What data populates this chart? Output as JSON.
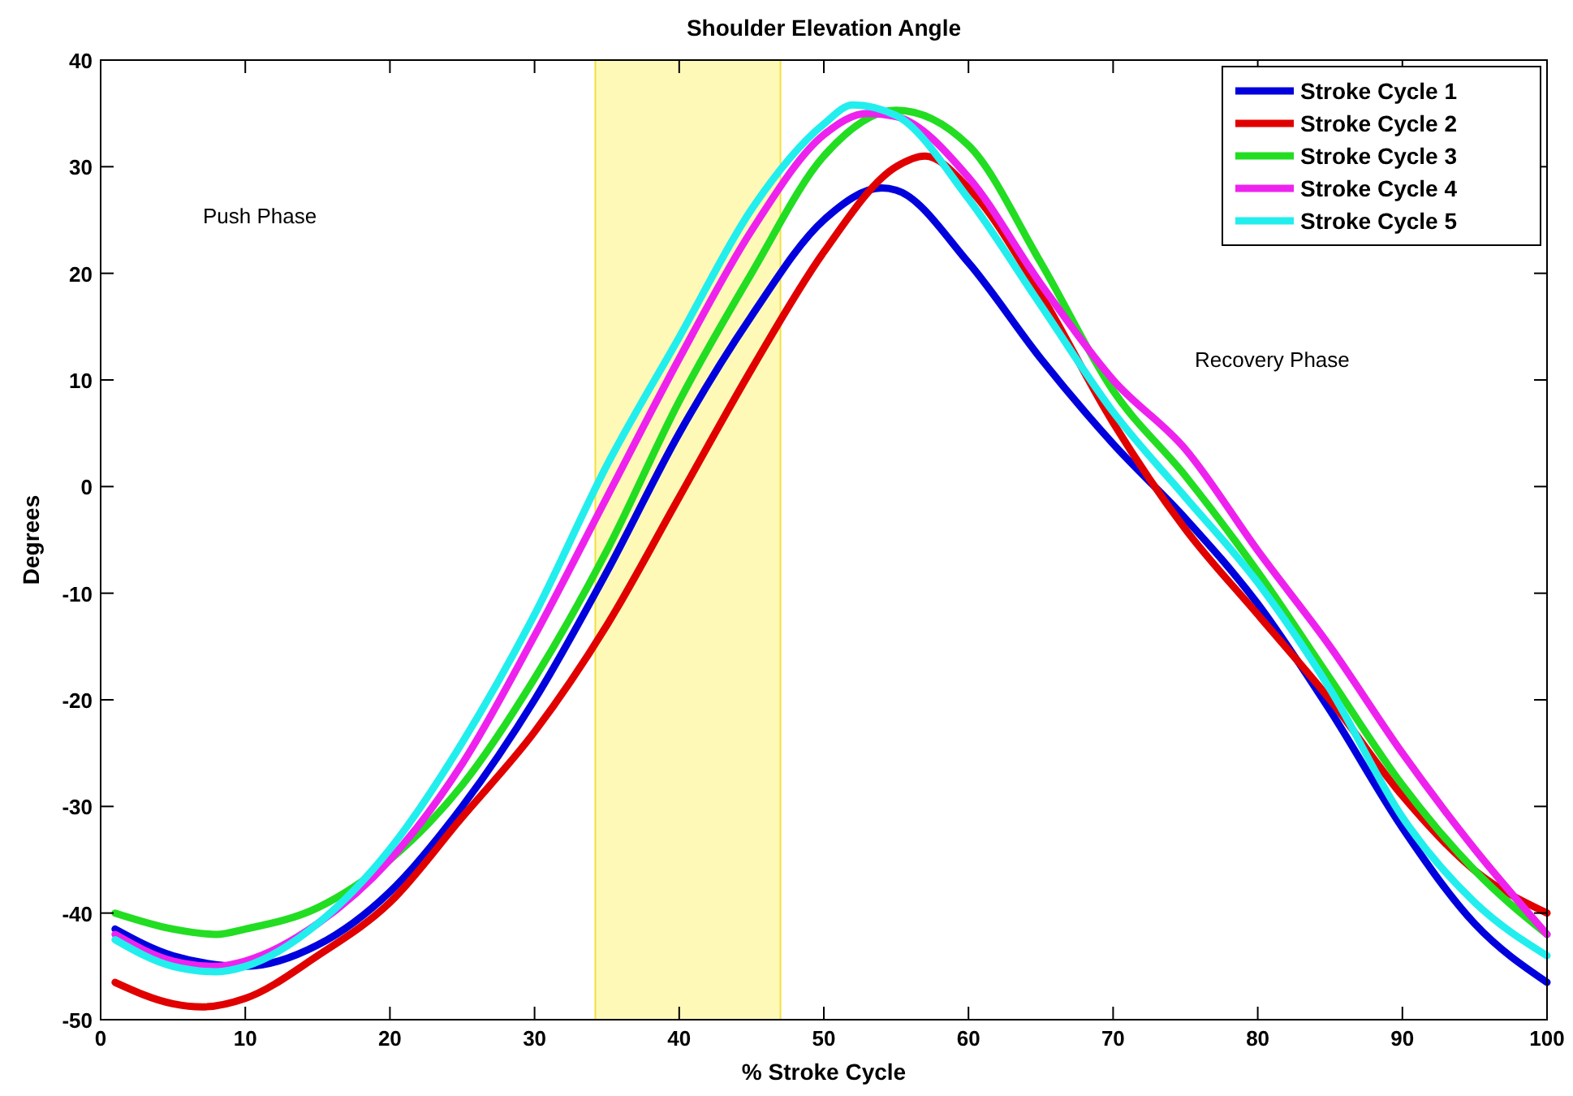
{
  "chart_data": {
    "type": "line",
    "title": "Shoulder Elevation Angle",
    "xlabel": "% Stroke Cycle",
    "ylabel": "Degrees",
    "xlim": [
      0,
      100
    ],
    "ylim": [
      -50,
      40
    ],
    "xticks": [
      0,
      10,
      20,
      30,
      40,
      50,
      60,
      70,
      80,
      90,
      100
    ],
    "yticks": [
      -50,
      -40,
      -30,
      -20,
      -10,
      0,
      10,
      20,
      30,
      40
    ],
    "grid": false,
    "legend": "top right",
    "marker": "none",
    "line_style": "solid",
    "bands": [
      {
        "axis": "x",
        "from": 34.2,
        "to": 47,
        "color": "#fff9b8"
      }
    ],
    "annotations": [
      "Push Phase",
      "Recovery Phase"
    ],
    "series": [
      {
        "name": "Stroke Cycle 1",
        "color": "#0000dd",
        "x": [
          1,
          5,
          10,
          15,
          20,
          25,
          30,
          35,
          40,
          45,
          50,
          54,
          55,
          60,
          65,
          70,
          75,
          80,
          85,
          90,
          95,
          100
        ],
        "values": [
          -41.5,
          -44,
          -45,
          -43,
          -38,
          -30,
          -20,
          -8,
          5,
          16,
          25,
          28,
          27.8,
          21,
          12,
          4,
          -3,
          -11,
          -21,
          -32,
          -41,
          -46.5
        ]
      },
      {
        "name": "Stroke Cycle 2",
        "color": "#e00000",
        "x": [
          1,
          5,
          7,
          10,
          15,
          20,
          25,
          30,
          35,
          40,
          45,
          50,
          55,
          57,
          60,
          65,
          70,
          75,
          80,
          85,
          90,
          95,
          100
        ],
        "values": [
          -46.5,
          -48.5,
          -48.8,
          -48,
          -44,
          -39,
          -31,
          -23,
          -13,
          -1,
          11,
          22,
          30,
          31,
          28,
          18,
          6,
          -4,
          -12,
          -20,
          -29,
          -36,
          -40
        ]
      },
      {
        "name": "Stroke Cycle 3",
        "color": "#22dd22",
        "x": [
          1,
          5,
          8,
          10,
          15,
          20,
          25,
          30,
          35,
          40,
          45,
          50,
          55,
          60,
          65,
          70,
          75,
          80,
          85,
          90,
          95,
          100
        ],
        "values": [
          -40,
          -41.5,
          -42,
          -41.5,
          -39.5,
          -35,
          -28,
          -18,
          -6,
          8,
          20,
          31,
          35.3,
          32,
          21,
          9,
          1,
          -8,
          -18,
          -28,
          -36,
          -42
        ]
      },
      {
        "name": "Stroke Cycle 4",
        "color": "#ee22ee",
        "x": [
          1,
          5,
          8,
          10,
          15,
          20,
          25,
          30,
          35,
          40,
          45,
          50,
          53,
          55,
          60,
          65,
          70,
          75,
          80,
          85,
          90,
          95,
          100
        ],
        "values": [
          -42,
          -44.5,
          -45,
          -44.5,
          -41,
          -35,
          -26,
          -14,
          -1,
          12,
          24,
          33,
          35,
          34.7,
          29,
          19,
          10,
          3.5,
          -6,
          -15,
          -25,
          -34,
          -42
        ]
      },
      {
        "name": "Stroke Cycle 5",
        "color": "#22eeee",
        "x": [
          1,
          5,
          8,
          10,
          15,
          20,
          25,
          30,
          35,
          40,
          45,
          50,
          52,
          55,
          60,
          65,
          70,
          75,
          80,
          85,
          90,
          95,
          100
        ],
        "values": [
          -42.5,
          -45,
          -45.5,
          -45,
          -41,
          -34,
          -24,
          -12,
          2,
          14,
          26,
          34,
          35.8,
          34.8,
          27,
          17,
          7,
          -1,
          -9,
          -19,
          -31,
          -39,
          -44
        ]
      }
    ]
  }
}
